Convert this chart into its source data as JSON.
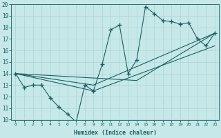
{
  "xlabel": "Humidex (Indice chaleur)",
  "xlim": [
    -0.5,
    23.5
  ],
  "ylim": [
    10,
    20
  ],
  "xticks": [
    0,
    1,
    2,
    3,
    4,
    5,
    6,
    7,
    8,
    9,
    10,
    11,
    12,
    13,
    14,
    15,
    16,
    17,
    18,
    19,
    20,
    21,
    22,
    23
  ],
  "yticks": [
    10,
    11,
    12,
    13,
    14,
    15,
    16,
    17,
    18,
    19,
    20
  ],
  "bg_color": "#c6e8e8",
  "line_color": "#1a6060",
  "grid_color": "#b0d8d8",
  "curve_x": [
    0,
    1,
    2,
    3,
    4,
    5,
    6,
    7,
    8,
    9,
    10,
    11,
    12,
    13,
    14,
    15,
    16,
    17,
    18,
    19,
    20,
    21,
    22,
    23
  ],
  "curve_y": [
    14.0,
    12.8,
    13.0,
    13.0,
    11.9,
    11.1,
    10.5,
    9.8,
    13.0,
    12.5,
    14.8,
    17.8,
    18.2,
    14.0,
    15.2,
    19.8,
    19.2,
    18.6,
    18.5,
    18.3,
    18.4,
    17.0,
    16.4,
    17.5
  ],
  "line1_x": [
    0,
    9,
    23
  ],
  "line1_y": [
    14.0,
    13.0,
    17.5
  ],
  "line2_x": [
    0,
    9,
    23
  ],
  "line2_y": [
    14.0,
    12.5,
    16.4
  ],
  "line3_x": [
    0,
    14,
    23
  ],
  "line3_y": [
    14.0,
    13.4,
    17.5
  ]
}
